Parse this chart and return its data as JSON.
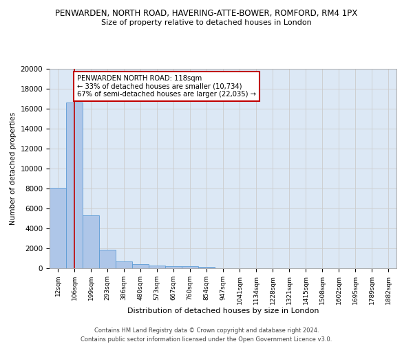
{
  "title_line1": "PENWARDEN, NORTH ROAD, HAVERING-ATTE-BOWER, ROMFORD, RM4 1PX",
  "title_line2": "Size of property relative to detached houses in London",
  "xlabel": "Distribution of detached houses by size in London",
  "ylabel": "Number of detached properties",
  "categories": [
    "12sqm",
    "106sqm",
    "199sqm",
    "293sqm",
    "386sqm",
    "480sqm",
    "573sqm",
    "667sqm",
    "760sqm",
    "854sqm",
    "947sqm",
    "1041sqm",
    "1134sqm",
    "1228sqm",
    "1321sqm",
    "1415sqm",
    "1508sqm",
    "1602sqm",
    "1695sqm",
    "1789sqm",
    "1882sqm"
  ],
  "values": [
    8100,
    16600,
    5300,
    1850,
    700,
    380,
    270,
    220,
    190,
    160,
    0,
    0,
    0,
    0,
    0,
    0,
    0,
    0,
    0,
    0,
    0
  ],
  "bar_color": "#aec6e8",
  "bar_edge_color": "#5b9bd5",
  "vline_x": 1,
  "vline_color": "#c00000",
  "annotation_text": "PENWARDEN NORTH ROAD: 118sqm\n← 33% of detached houses are smaller (10,734)\n67% of semi-detached houses are larger (22,035) →",
  "annotation_box_color": "#ffffff",
  "annotation_box_edge_color": "#c00000",
  "ylim": [
    0,
    20000
  ],
  "yticks": [
    0,
    2000,
    4000,
    6000,
    8000,
    10000,
    12000,
    14000,
    16000,
    18000,
    20000
  ],
  "grid_color": "#cccccc",
  "bg_color": "#dce8f5",
  "footer_line1": "Contains HM Land Registry data © Crown copyright and database right 2024.",
  "footer_line2": "Contains public sector information licensed under the Open Government Licence v3.0."
}
